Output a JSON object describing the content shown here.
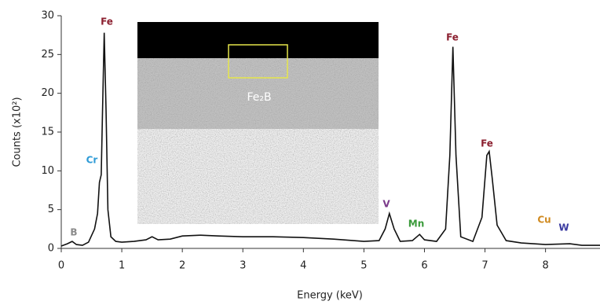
{
  "chart_data": {
    "type": "line",
    "x_label": "Energy (keV)",
    "y_label": "Counts (x10²)",
    "xlim": [
      0,
      8.9
    ],
    "xticks": [
      0,
      1,
      2,
      3,
      4,
      5,
      6,
      7,
      8
    ],
    "ylim": [
      0,
      30
    ],
    "yticks": [
      0,
      5,
      10,
      15,
      20,
      25,
      30
    ],
    "series": [
      {
        "color": "#111111",
        "x": [
          0.0,
          0.1,
          0.18,
          0.25,
          0.35,
          0.45,
          0.55,
          0.6,
          0.63,
          0.66,
          0.68,
          0.71,
          0.74,
          0.77,
          0.82,
          0.9,
          1.0,
          1.2,
          1.4,
          1.5,
          1.6,
          1.8,
          2.0,
          2.3,
          2.6,
          3.0,
          3.5,
          4.0,
          4.5,
          5.0,
          5.25,
          5.35,
          5.42,
          5.5,
          5.6,
          5.8,
          5.92,
          6.0,
          6.2,
          6.35,
          6.42,
          6.47,
          6.52,
          6.6,
          6.8,
          6.95,
          7.03,
          7.07,
          7.12,
          7.2,
          7.35,
          7.6,
          8.0,
          8.4,
          8.6,
          8.9
        ],
        "values": [
          0.3,
          0.6,
          0.9,
          0.5,
          0.4,
          0.8,
          2.5,
          4.5,
          8.5,
          9.5,
          17,
          27.8,
          18,
          5,
          1.5,
          0.9,
          0.8,
          0.9,
          1.1,
          1.5,
          1.1,
          1.2,
          1.6,
          1.7,
          1.6,
          1.5,
          1.5,
          1.4,
          1.2,
          0.9,
          1.0,
          2.5,
          4.5,
          2.5,
          0.9,
          1.0,
          1.8,
          1.1,
          0.9,
          2.5,
          12,
          26,
          12,
          1.5,
          0.9,
          4,
          12,
          12.5,
          9,
          3,
          1.0,
          0.7,
          0.5,
          0.6,
          0.4,
          0.4
        ]
      }
    ],
    "annotations": [
      {
        "text": "B",
        "color": "#8a8a8a"
      },
      {
        "text": "Cr",
        "color": "#2e9bd6"
      },
      {
        "text": "Fe",
        "color": "#8b1f2f"
      },
      {
        "text": "V",
        "color": "#7a3a8a"
      },
      {
        "text": "Mn",
        "color": "#3a9a3a"
      },
      {
        "text": "Fe",
        "color": "#8b1f2f"
      },
      {
        "text": "Fe",
        "color": "#8b1f2f"
      },
      {
        "text": "Cu",
        "color": "#d08a20"
      },
      {
        "text": "W",
        "color": "#3a3aa0"
      }
    ],
    "inset_label": "Fe₂B"
  }
}
